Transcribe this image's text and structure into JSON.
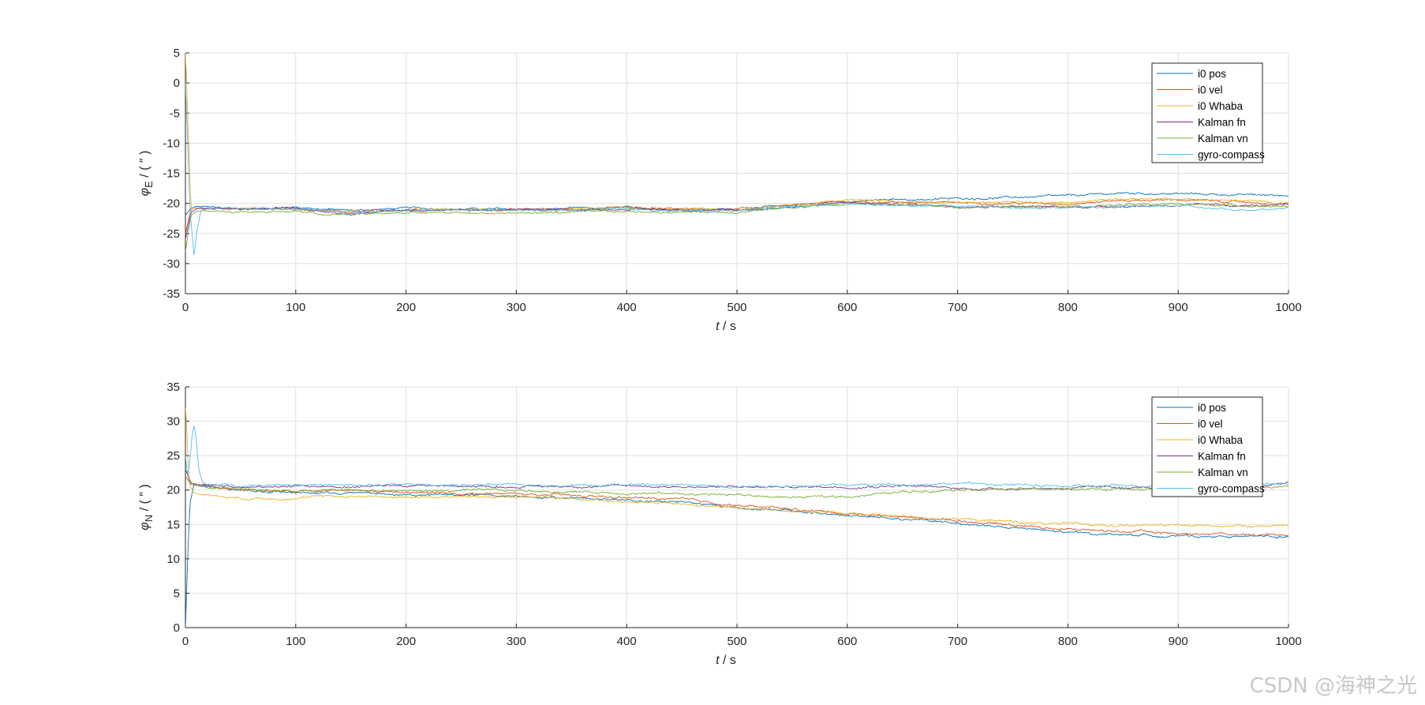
{
  "chart_data": [
    {
      "type": "line",
      "xlabel_var": "t",
      "xlabel_unit": "/ s",
      "ylabel_var": "φ",
      "ylabel_sub": "E",
      "ylabel_unit": "/ ( ″ )",
      "xlim": [
        0,
        1000
      ],
      "ylim": [
        -35,
        5
      ],
      "xticks": [
        0,
        100,
        200,
        300,
        400,
        500,
        600,
        700,
        800,
        900,
        1000
      ],
      "yticks": [
        -35,
        -30,
        -25,
        -20,
        -15,
        -10,
        -5,
        0,
        5
      ],
      "grid": true,
      "legend_position": "top-right",
      "series": [
        {
          "name": "i0 pos",
          "color": "#0072BD",
          "x": [
            0,
            5,
            10,
            20,
            50,
            100,
            150,
            200,
            300,
            400,
            500,
            600,
            700,
            800,
            850,
            900,
            1000
          ],
          "y": [
            -22,
            -20.8,
            -20.5,
            -20.6,
            -21,
            -20.6,
            -21.2,
            -20.8,
            -21,
            -20.8,
            -21,
            -19.6,
            -19.2,
            -18.8,
            -18.3,
            -18.4,
            -18.7
          ]
        },
        {
          "name": "i0 vel",
          "color": "#D95319",
          "x": [
            0,
            5,
            10,
            20,
            50,
            100,
            150,
            200,
            300,
            400,
            500,
            600,
            700,
            800,
            850,
            900,
            1000
          ],
          "y": [
            -25,
            -21,
            -20.7,
            -20.7,
            -21,
            -20.8,
            -21.4,
            -21,
            -21.1,
            -20.9,
            -21,
            -19.7,
            -19.9,
            -20,
            -19.5,
            -19.4,
            -20.1
          ]
        },
        {
          "name": "i0 Whaba",
          "color": "#EDB120",
          "x": [
            0,
            2,
            5,
            10,
            20,
            50,
            100,
            150,
            200,
            300,
            400,
            500,
            600,
            700,
            800,
            850,
            900,
            1000
          ],
          "y": [
            5,
            -5,
            -21,
            -20.7,
            -20.8,
            -21,
            -20.9,
            -21.3,
            -21,
            -21.1,
            -20.8,
            -21,
            -19.5,
            -19.8,
            -19.9,
            -19.2,
            -19.2,
            -19.9
          ]
        },
        {
          "name": "Kalman fn",
          "color": "#7E2F8E",
          "x": [
            0,
            5,
            10,
            20,
            50,
            100,
            150,
            200,
            300,
            400,
            500,
            600,
            700,
            800,
            900,
            1000
          ],
          "y": [
            -26,
            -21.5,
            -20.9,
            -20.8,
            -21.1,
            -20.7,
            -21.6,
            -21.1,
            -21.2,
            -20.9,
            -21.2,
            -19.9,
            -20.4,
            -20.6,
            -20.3,
            -20.4
          ]
        },
        {
          "name": "Kalman vn",
          "color": "#77AC30",
          "x": [
            0,
            5,
            10,
            20,
            50,
            100,
            130,
            150,
            200,
            300,
            400,
            500,
            600,
            700,
            800,
            900,
            1000
          ],
          "y": [
            -28,
            -22,
            -21.3,
            -21.2,
            -21.4,
            -21.3,
            -22,
            -21.8,
            -21.6,
            -21.6,
            -21.4,
            -21.4,
            -20,
            -20.6,
            -20.4,
            -20.1,
            -20.5
          ]
        },
        {
          "name": "gyro-compass",
          "color": "#4DBEEE",
          "x": [
            0,
            2,
            4,
            6,
            8,
            10,
            14,
            20,
            50,
            100,
            150,
            200,
            300,
            400,
            500,
            600,
            700,
            800,
            900,
            950,
            1000
          ],
          "y": [
            0,
            -10,
            -21,
            -25,
            -29,
            -25,
            -21.2,
            -20.8,
            -21,
            -20.9,
            -21.5,
            -21.1,
            -21.2,
            -21,
            -21.2,
            -20,
            -20.5,
            -20.7,
            -20.4,
            -21.2,
            -20.6
          ]
        }
      ]
    },
    {
      "type": "line",
      "xlabel_var": "t",
      "xlabel_unit": "/ s",
      "ylabel_var": "φ",
      "ylabel_sub": "N",
      "ylabel_unit": "/ ( ″ )",
      "xlim": [
        0,
        1000
      ],
      "ylim": [
        0,
        35
      ],
      "xticks": [
        0,
        100,
        200,
        300,
        400,
        500,
        600,
        700,
        800,
        900,
        1000
      ],
      "yticks": [
        0,
        5,
        10,
        15,
        20,
        25,
        30,
        35
      ],
      "grid": true,
      "legend_position": "top-right",
      "series": [
        {
          "name": "i0 pos",
          "color": "#0072BD",
          "x": [
            0,
            2,
            4,
            8,
            12,
            20,
            50,
            100,
            150,
            200,
            300,
            400,
            450,
            500,
            600,
            700,
            800,
            900,
            1000
          ],
          "y": [
            0,
            10,
            18,
            21,
            20.7,
            20.6,
            20,
            19.6,
            19.6,
            19.3,
            19.2,
            18.6,
            18.3,
            17.5,
            16.3,
            15.2,
            13.8,
            13.3,
            13.2
          ]
        },
        {
          "name": "i0 vel",
          "color": "#D95319",
          "x": [
            0,
            5,
            10,
            20,
            50,
            100,
            150,
            200,
            300,
            400,
            450,
            500,
            600,
            700,
            800,
            900,
            1000
          ],
          "y": [
            22,
            21,
            20.8,
            20.6,
            20.2,
            19.7,
            19.9,
            19.6,
            19.4,
            18.9,
            18.6,
            17.8,
            16.6,
            15.6,
            14.3,
            13.7,
            13.5
          ]
        },
        {
          "name": "i0 Whaba",
          "color": "#EDB120",
          "x": [
            0,
            1,
            2,
            4,
            8,
            12,
            20,
            50,
            100,
            150,
            200,
            300,
            400,
            500,
            600,
            700,
            800,
            900,
            1000
          ],
          "y": [
            32,
            30,
            25,
            20.5,
            19.6,
            19.4,
            19.3,
            18.8,
            18.9,
            19.1,
            19,
            19,
            18.4,
            17.4,
            16.6,
            15.8,
            15,
            14.8,
            14.9
          ]
        },
        {
          "name": "Kalman fn",
          "color": "#7E2F8E",
          "x": [
            0,
            5,
            10,
            20,
            50,
            100,
            150,
            200,
            300,
            400,
            500,
            600,
            650,
            700,
            800,
            900,
            950,
            1000
          ],
          "y": [
            23,
            21,
            20.8,
            20.6,
            20.3,
            20.7,
            20.4,
            20.7,
            20.5,
            20.6,
            20.4,
            20.5,
            20.7,
            20.2,
            20.3,
            20.4,
            20.3,
            21
          ]
        },
        {
          "name": "Kalman vn",
          "color": "#77AC30",
          "x": [
            0,
            5,
            10,
            20,
            50,
            100,
            150,
            200,
            300,
            400,
            500,
            550,
            600,
            650,
            700,
            800,
            900,
            1000
          ],
          "y": [
            22,
            20.8,
            20.6,
            20.4,
            20.1,
            19.8,
            20,
            19.9,
            19.9,
            19.6,
            19.3,
            18.9,
            19.1,
            19.7,
            20.2,
            20.1,
            20.3,
            20.5
          ]
        },
        {
          "name": "gyro-compass",
          "color": "#4DBEEE",
          "x": [
            0,
            2,
            4,
            6,
            8,
            10,
            12,
            16,
            20,
            50,
            100,
            150,
            200,
            300,
            400,
            500,
            600,
            700,
            800,
            900,
            1000
          ],
          "y": [
            25,
            22,
            24,
            28,
            29.5,
            27,
            23,
            21,
            20.8,
            20.7,
            20.9,
            20.6,
            20.8,
            20.7,
            20.8,
            20.6,
            20.7,
            21,
            20.5,
            20.7,
            20.9
          ]
        }
      ]
    }
  ],
  "watermark": "CSDN @海神之光"
}
